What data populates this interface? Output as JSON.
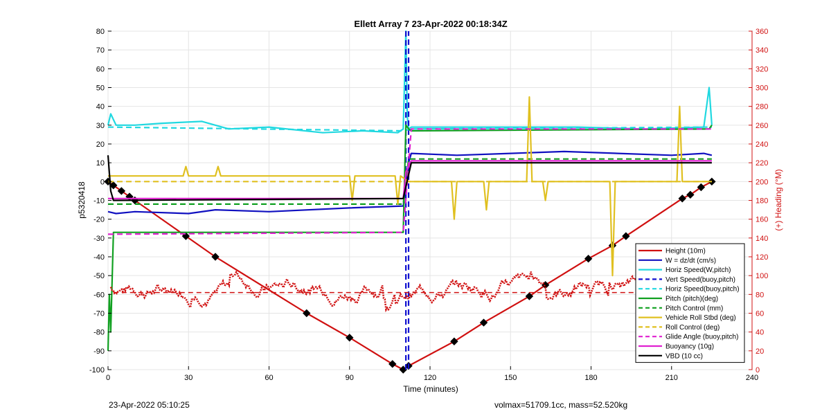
{
  "chart_data": {
    "type": "line",
    "title": "Ellett Array 7 23-Apr-2022 00:18:34Z",
    "xlabel": "Time (minutes)",
    "ylabel": "p5320418",
    "y2label": "(+) Heading (°M)",
    "xlim": [
      0,
      240
    ],
    "ylim": [
      -100,
      80
    ],
    "y2lim": [
      0,
      360
    ],
    "xticks": [
      0,
      30,
      60,
      90,
      120,
      150,
      180,
      210,
      240
    ],
    "yticks": [
      80,
      70,
      60,
      50,
      40,
      30,
      20,
      10,
      0,
      -10,
      -20,
      -30,
      -40,
      -50,
      -60,
      -70,
      -80,
      -90,
      -100
    ],
    "y2ticks": [
      360,
      340,
      320,
      300,
      280,
      260,
      240,
      220,
      200,
      180,
      160,
      140,
      120,
      100,
      80,
      60,
      40,
      20,
      0
    ],
    "legend_position": "bottom-right",
    "series": [
      {
        "name": "Height (10m)",
        "color": "#d01010",
        "style": "solid",
        "markers": "diamond",
        "x": [
          0,
          2,
          5,
          8,
          10,
          29,
          40,
          74,
          90,
          106,
          110,
          112,
          129,
          140,
          157,
          163,
          179,
          188,
          193,
          214,
          217,
          221,
          225
        ],
        "y": [
          0,
          -2,
          -5,
          -8,
          -10,
          -29,
          -40,
          -70,
          -83,
          -97,
          -100,
          -98,
          -85,
          -75,
          -61,
          -55,
          -41,
          -34,
          -29,
          -9,
          -7,
          -3,
          0
        ]
      },
      {
        "name": "W = dz/dt (cm/s)",
        "color": "#1010c0",
        "style": "solid",
        "x": [
          0,
          3,
          10,
          30,
          40,
          60,
          90,
          110,
          112,
          113,
          130,
          150,
          170,
          190,
          210,
          222,
          225
        ],
        "y": [
          -16,
          -17,
          -16,
          -17,
          -15,
          -16,
          -14,
          -13,
          10,
          15,
          14,
          15,
          16,
          15,
          14,
          15,
          14
        ]
      },
      {
        "name": "Horiz Speed(W,pitch)",
        "color": "#20d8e0",
        "style": "solid",
        "x": [
          0,
          1,
          3,
          10,
          20,
          35,
          45,
          60,
          80,
          95,
          108,
          110,
          111,
          111.5,
          112,
          113,
          125,
          150,
          175,
          200,
          222,
          224,
          225
        ],
        "y": [
          30,
          36,
          30,
          30,
          31,
          32,
          28,
          29,
          26,
          27,
          26,
          28,
          80,
          35,
          28,
          29,
          29,
          29,
          29,
          28,
          29,
          50,
          30
        ]
      },
      {
        "name": "Vert Speed(buoy,pitch)",
        "color": "#1010d0",
        "style": "dashed",
        "x": [
          111,
          111,
          112,
          112
        ],
        "y": [
          80,
          -100,
          -100,
          80
        ]
      },
      {
        "name": "Horiz Speed(buoy,pitch)",
        "color": "#20d8e0",
        "style": "dashed",
        "x": [
          0,
          110,
          113,
          225
        ],
        "y": [
          29,
          27,
          28,
          29
        ]
      },
      {
        "name": "Pitch (pitch)(deg)",
        "color": "#10a020",
        "style": "solid",
        "x": [
          0,
          0.5,
          1,
          2,
          110,
          111,
          112,
          113,
          224,
          225
        ],
        "y": [
          -90,
          -60,
          -80,
          -27,
          -27,
          30,
          28,
          27,
          28,
          30
        ]
      },
      {
        "name": "Pitch Control (mm)",
        "color": "#10a020",
        "style": "dashed",
        "x": [
          0,
          3,
          110,
          112,
          225
        ],
        "y": [
          -12,
          -12,
          -12,
          12,
          12
        ]
      },
      {
        "name": "Vehicle Roll Stbd (deg)",
        "color": "#e0c020",
        "style": "solid",
        "x": [
          0,
          5,
          28,
          29,
          30,
          40,
          41,
          42,
          90,
          91,
          92,
          107,
          108,
          109,
          112,
          113,
          128,
          129,
          130,
          140,
          141,
          142,
          156,
          157,
          158,
          162,
          163,
          164,
          187,
          188,
          189,
          212,
          213,
          214,
          225
        ],
        "y": [
          3,
          3,
          3,
          8,
          3,
          3,
          8,
          3,
          3,
          -10,
          3,
          3,
          -12,
          3,
          0,
          0,
          0,
          -20,
          0,
          0,
          -15,
          0,
          0,
          45,
          0,
          0,
          -10,
          0,
          0,
          -50,
          0,
          0,
          40,
          0,
          0
        ]
      },
      {
        "name": "Roll Control (deg)",
        "color": "#e0c020",
        "style": "dashed",
        "x": [
          0,
          10,
          100,
          110,
          112,
          225
        ],
        "y": [
          0,
          0,
          0,
          0,
          0,
          0
        ]
      },
      {
        "name": "Glide Angle (buoy,pitch)",
        "color": "#e020d0",
        "style": "dashed",
        "x": [
          0,
          110,
          113,
          225
        ],
        "y": [
          -28,
          -27,
          28,
          28
        ]
      },
      {
        "name": "Buoyancy (10g)",
        "color": "#e020d0",
        "style": "solid",
        "x": [
          0,
          110,
          111,
          113,
          225
        ],
        "y": [
          -9,
          -9,
          5,
          11,
          11
        ]
      },
      {
        "name": "VBD (10 cc)",
        "color": "#000000",
        "style": "solid",
        "x": [
          0,
          1,
          2,
          110,
          113,
          225
        ],
        "y": [
          14,
          -5,
          -10,
          -9,
          10,
          10
        ]
      }
    ]
  },
  "footer": {
    "left": "23-Apr-2022 05:10:25",
    "right": "volmax=51709.1cc, mass=52.520kg"
  }
}
